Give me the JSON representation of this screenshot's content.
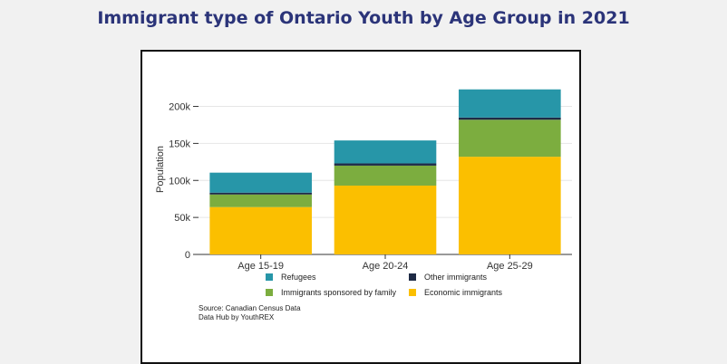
{
  "title": "Immigrant type of Ontario Youth by Age Group in 2021",
  "chart_data": {
    "type": "bar",
    "stacked": true,
    "categories": [
      "Age 15-19",
      "Age 20-24",
      "Age 25-29"
    ],
    "series": [
      {
        "name": "Economic immigrants",
        "color": "#fbbf00",
        "values": [
          64000,
          93000,
          132000
        ]
      },
      {
        "name": "Immigrants sponsored by family",
        "color": "#7cad3f",
        "values": [
          17000,
          27000,
          50000
        ]
      },
      {
        "name": "Other immigrants",
        "color": "#1e2a45",
        "values": [
          2500,
          3000,
          3000
        ]
      },
      {
        "name": "Refugees",
        "color": "#2796a8",
        "values": [
          27000,
          31000,
          38000
        ]
      }
    ],
    "ylabel": "Population",
    "ylim": [
      0,
      230000
    ],
    "yticks": [
      0,
      50000,
      100000,
      150000,
      200000
    ],
    "ytick_labels": [
      "0",
      "50k",
      "100k",
      "150k",
      "200k"
    ],
    "grid": true,
    "legend_placement": "bottom",
    "legend_order": [
      "Refugees",
      "Other immigrants",
      "Immigrants sponsored by family",
      "Economic immigrants"
    ]
  },
  "source": {
    "line1": "Source: Canadian Census Data",
    "line2": "Data Hub by YouthREX"
  }
}
